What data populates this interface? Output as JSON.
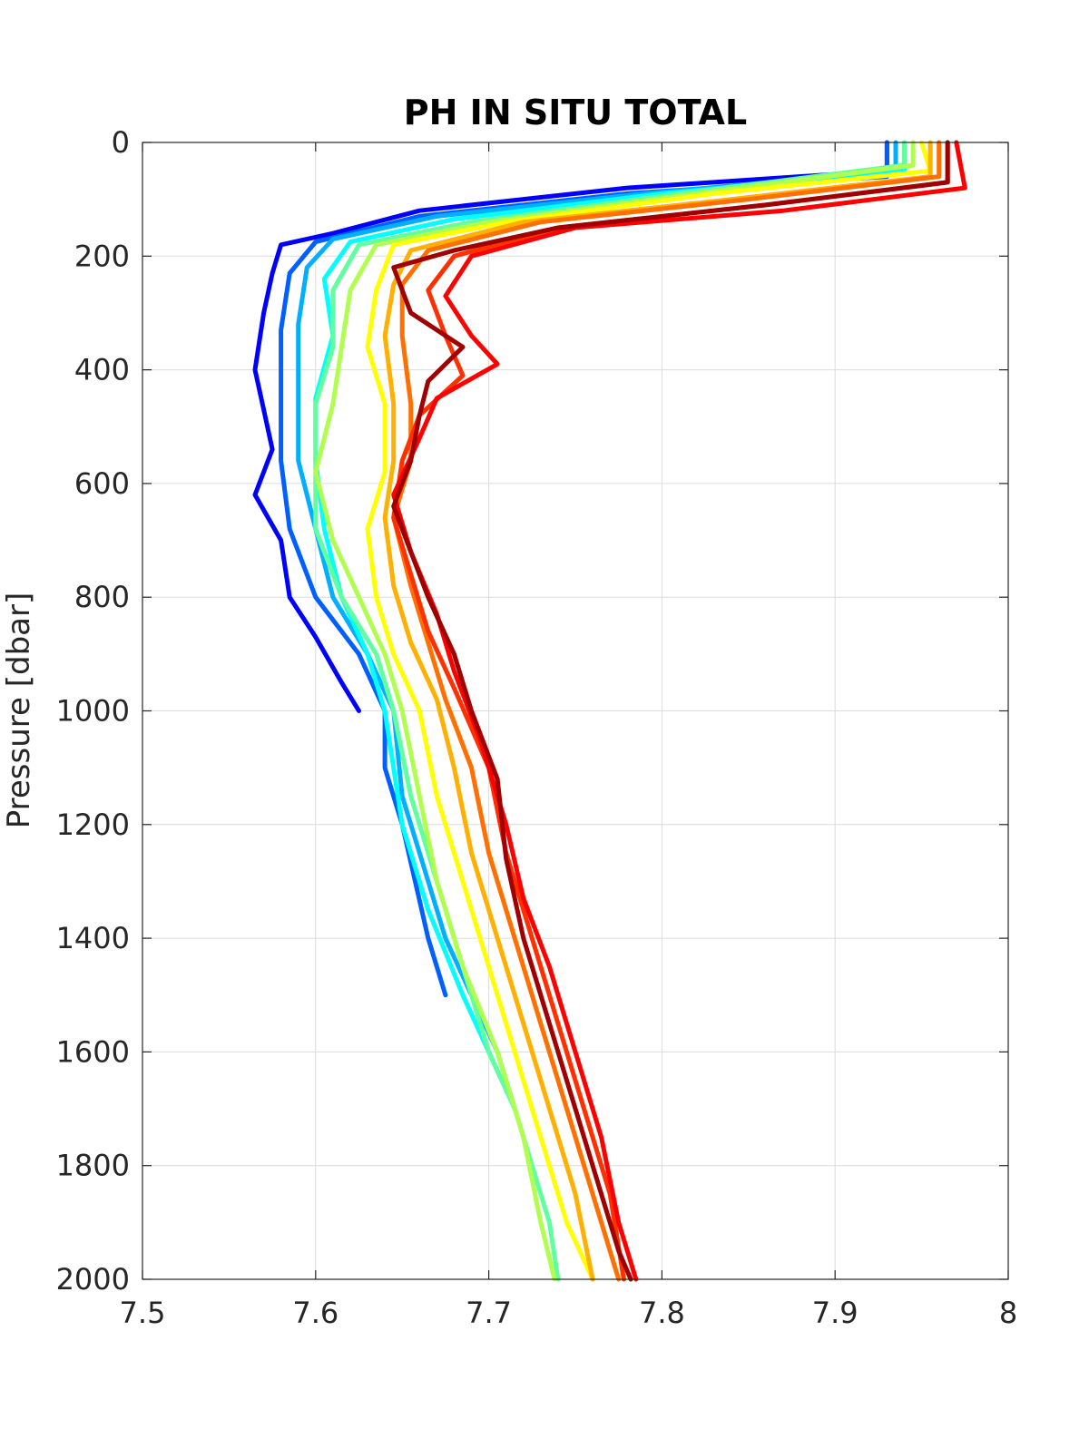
{
  "chart_data": {
    "type": "line",
    "title": "PH IN SITU TOTAL",
    "xlabel": "",
    "ylabel": "Pressure [dbar]",
    "xlim": [
      7.5,
      8.0
    ],
    "ylim": [
      0,
      2000
    ],
    "y_reversed": true,
    "grid": true,
    "legend": "none",
    "xticks": [
      "7.5",
      "7.6",
      "7.7",
      "7.8",
      "7.9",
      "8"
    ],
    "yticks": [
      "0",
      "200",
      "400",
      "600",
      "800",
      "1000",
      "1200",
      "1400",
      "1600",
      "1800",
      "2000"
    ],
    "series": [
      {
        "color": "#0000ff",
        "points": [
          [
            7.93,
            0
          ],
          [
            7.93,
            50
          ],
          [
            7.78,
            80
          ],
          [
            7.66,
            120
          ],
          [
            7.61,
            160
          ],
          [
            7.58,
            180
          ],
          [
            7.575,
            230
          ],
          [
            7.57,
            300
          ],
          [
            7.565,
            400
          ],
          [
            7.57,
            470
          ],
          [
            7.575,
            540
          ],
          [
            7.565,
            620
          ],
          [
            7.58,
            700
          ],
          [
            7.585,
            800
          ],
          [
            7.6,
            870
          ],
          [
            7.615,
            950
          ],
          [
            7.625,
            1000
          ]
        ]
      },
      {
        "color": "#0060ff",
        "points": [
          [
            7.93,
            0
          ],
          [
            7.93,
            60
          ],
          [
            7.78,
            90
          ],
          [
            7.66,
            130
          ],
          [
            7.6,
            175
          ],
          [
            7.585,
            230
          ],
          [
            7.58,
            330
          ],
          [
            7.58,
            450
          ],
          [
            7.58,
            560
          ],
          [
            7.585,
            680
          ],
          [
            7.6,
            800
          ],
          [
            7.625,
            900
          ],
          [
            7.64,
            1000
          ],
          [
            7.64,
            1100
          ],
          [
            7.65,
            1200
          ],
          [
            7.665,
            1400
          ],
          [
            7.675,
            1500
          ]
        ]
      },
      {
        "color": "#00b0ff",
        "points": [
          [
            7.935,
            0
          ],
          [
            7.935,
            50
          ],
          [
            7.79,
            90
          ],
          [
            7.67,
            130
          ],
          [
            7.61,
            170
          ],
          [
            7.595,
            220
          ],
          [
            7.59,
            320
          ],
          [
            7.59,
            450
          ],
          [
            7.59,
            560
          ],
          [
            7.6,
            680
          ],
          [
            7.61,
            800
          ],
          [
            7.63,
            900
          ],
          [
            7.645,
            1000
          ],
          [
            7.65,
            1150
          ],
          [
            7.66,
            1250
          ],
          [
            7.675,
            1400
          ],
          [
            7.69,
            1500
          ],
          [
            7.705,
            1600
          ],
          [
            7.715,
            1700
          ]
        ]
      },
      {
        "color": "#00ffff",
        "points": [
          [
            7.94,
            0
          ],
          [
            7.94,
            50
          ],
          [
            7.8,
            90
          ],
          [
            7.68,
            135
          ],
          [
            7.62,
            175
          ],
          [
            7.605,
            240
          ],
          [
            7.61,
            340
          ],
          [
            7.6,
            450
          ],
          [
            7.6,
            560
          ],
          [
            7.605,
            680
          ],
          [
            7.615,
            800
          ],
          [
            7.63,
            900
          ],
          [
            7.64,
            1000
          ],
          [
            7.65,
            1200
          ],
          [
            7.665,
            1350
          ],
          [
            7.685,
            1500
          ],
          [
            7.7,
            1600
          ],
          [
            7.715,
            1700
          ]
        ]
      },
      {
        "color": "#60ffa0",
        "points": [
          [
            7.94,
            0
          ],
          [
            7.94,
            40
          ],
          [
            7.81,
            90
          ],
          [
            7.69,
            140
          ],
          [
            7.625,
            180
          ],
          [
            7.61,
            260
          ],
          [
            7.61,
            360
          ],
          [
            7.6,
            460
          ],
          [
            7.6,
            580
          ],
          [
            7.6,
            680
          ],
          [
            7.615,
            800
          ],
          [
            7.635,
            900
          ],
          [
            7.645,
            1000
          ],
          [
            7.655,
            1150
          ],
          [
            7.67,
            1300
          ],
          [
            7.685,
            1450
          ],
          [
            7.7,
            1600
          ],
          [
            7.715,
            1700
          ],
          [
            7.725,
            1800
          ],
          [
            7.735,
            1900
          ],
          [
            7.74,
            2000
          ]
        ]
      },
      {
        "color": "#b0ff50",
        "points": [
          [
            7.945,
            0
          ],
          [
            7.945,
            40
          ],
          [
            7.82,
            90
          ],
          [
            7.7,
            140
          ],
          [
            7.635,
            180
          ],
          [
            7.62,
            260
          ],
          [
            7.615,
            360
          ],
          [
            7.61,
            460
          ],
          [
            7.6,
            580
          ],
          [
            7.61,
            700
          ],
          [
            7.625,
            800
          ],
          [
            7.64,
            900
          ],
          [
            7.65,
            1000
          ],
          [
            7.66,
            1150
          ],
          [
            7.67,
            1300
          ],
          [
            7.685,
            1450
          ],
          [
            7.705,
            1600
          ],
          [
            7.72,
            1750
          ],
          [
            7.73,
            1900
          ],
          [
            7.738,
            2000
          ]
        ]
      },
      {
        "color": "#ffff00",
        "points": [
          [
            7.95,
            0
          ],
          [
            7.955,
            50
          ],
          [
            7.83,
            90
          ],
          [
            7.71,
            140
          ],
          [
            7.645,
            180
          ],
          [
            7.635,
            260
          ],
          [
            7.63,
            360
          ],
          [
            7.64,
            460
          ],
          [
            7.64,
            580
          ],
          [
            7.63,
            680
          ],
          [
            7.635,
            800
          ],
          [
            7.645,
            900
          ],
          [
            7.66,
            1000
          ],
          [
            7.67,
            1150
          ],
          [
            7.685,
            1300
          ],
          [
            7.7,
            1450
          ],
          [
            7.715,
            1600
          ],
          [
            7.73,
            1750
          ],
          [
            7.745,
            1900
          ],
          [
            7.76,
            2000
          ]
        ]
      },
      {
        "color": "#ffb000",
        "points": [
          [
            7.955,
            0
          ],
          [
            7.955,
            60
          ],
          [
            7.84,
            100
          ],
          [
            7.72,
            140
          ],
          [
            7.655,
            190
          ],
          [
            7.645,
            250
          ],
          [
            7.64,
            340
          ],
          [
            7.645,
            460
          ],
          [
            7.645,
            560
          ],
          [
            7.64,
            660
          ],
          [
            7.645,
            780
          ],
          [
            7.655,
            880
          ],
          [
            7.67,
            980
          ],
          [
            7.68,
            1100
          ],
          [
            7.69,
            1250
          ],
          [
            7.705,
            1400
          ],
          [
            7.72,
            1550
          ],
          [
            7.735,
            1700
          ],
          [
            7.75,
            1850
          ],
          [
            7.76,
            2000
          ]
        ]
      },
      {
        "color": "#ff7000",
        "points": [
          [
            7.96,
            0
          ],
          [
            7.96,
            60
          ],
          [
            7.85,
            100
          ],
          [
            7.73,
            140
          ],
          [
            7.665,
            190
          ],
          [
            7.65,
            250
          ],
          [
            7.65,
            340
          ],
          [
            7.655,
            460
          ],
          [
            7.655,
            560
          ],
          [
            7.645,
            660
          ],
          [
            7.655,
            780
          ],
          [
            7.665,
            880
          ],
          [
            7.675,
            980
          ],
          [
            7.69,
            1100
          ],
          [
            7.7,
            1250
          ],
          [
            7.715,
            1400
          ],
          [
            7.73,
            1550
          ],
          [
            7.745,
            1700
          ],
          [
            7.76,
            1850
          ],
          [
            7.775,
            2000
          ]
        ]
      },
      {
        "color": "#ff3000",
        "points": [
          [
            7.965,
            0
          ],
          [
            7.965,
            70
          ],
          [
            7.86,
            110
          ],
          [
            7.74,
            150
          ],
          [
            7.68,
            200
          ],
          [
            7.665,
            260
          ],
          [
            7.675,
            340
          ],
          [
            7.685,
            410
          ],
          [
            7.66,
            480
          ],
          [
            7.65,
            560
          ],
          [
            7.645,
            660
          ],
          [
            7.655,
            760
          ],
          [
            7.665,
            860
          ],
          [
            7.68,
            960
          ],
          [
            7.7,
            1100
          ],
          [
            7.71,
            1250
          ],
          [
            7.725,
            1400
          ],
          [
            7.74,
            1550
          ],
          [
            7.755,
            1700
          ],
          [
            7.77,
            1850
          ],
          [
            7.778,
            2000
          ]
        ]
      },
      {
        "color": "#ff0000",
        "points": [
          [
            7.97,
            0
          ],
          [
            7.975,
            80
          ],
          [
            7.87,
            120
          ],
          [
            7.75,
            150
          ],
          [
            7.69,
            200
          ],
          [
            7.675,
            270
          ],
          [
            7.69,
            340
          ],
          [
            7.705,
            390
          ],
          [
            7.67,
            450
          ],
          [
            7.66,
            520
          ],
          [
            7.645,
            620
          ],
          [
            7.655,
            720
          ],
          [
            7.67,
            830
          ],
          [
            7.68,
            930
          ],
          [
            7.695,
            1050
          ],
          [
            7.71,
            1200
          ],
          [
            7.72,
            1330
          ],
          [
            7.735,
            1450
          ],
          [
            7.75,
            1600
          ],
          [
            7.765,
            1750
          ],
          [
            7.775,
            1900
          ],
          [
            7.785,
            2000
          ]
        ]
      },
      {
        "color": "#a00000",
        "points": [
          [
            7.965,
            0
          ],
          [
            7.965,
            70
          ],
          [
            7.86,
            110
          ],
          [
            7.74,
            150
          ],
          [
            7.68,
            190
          ],
          [
            7.645,
            220
          ],
          [
            7.655,
            300
          ],
          [
            7.685,
            360
          ],
          [
            7.665,
            420
          ],
          [
            7.66,
            480
          ],
          [
            7.655,
            560
          ],
          [
            7.645,
            640
          ],
          [
            7.655,
            720
          ],
          [
            7.665,
            800
          ],
          [
            7.68,
            900
          ],
          [
            7.69,
            1000
          ],
          [
            7.705,
            1120
          ],
          [
            7.71,
            1260
          ],
          [
            7.72,
            1400
          ],
          [
            7.735,
            1550
          ],
          [
            7.75,
            1700
          ],
          [
            7.765,
            1850
          ],
          [
            7.775,
            1950
          ],
          [
            7.782,
            2000
          ]
        ]
      }
    ]
  }
}
